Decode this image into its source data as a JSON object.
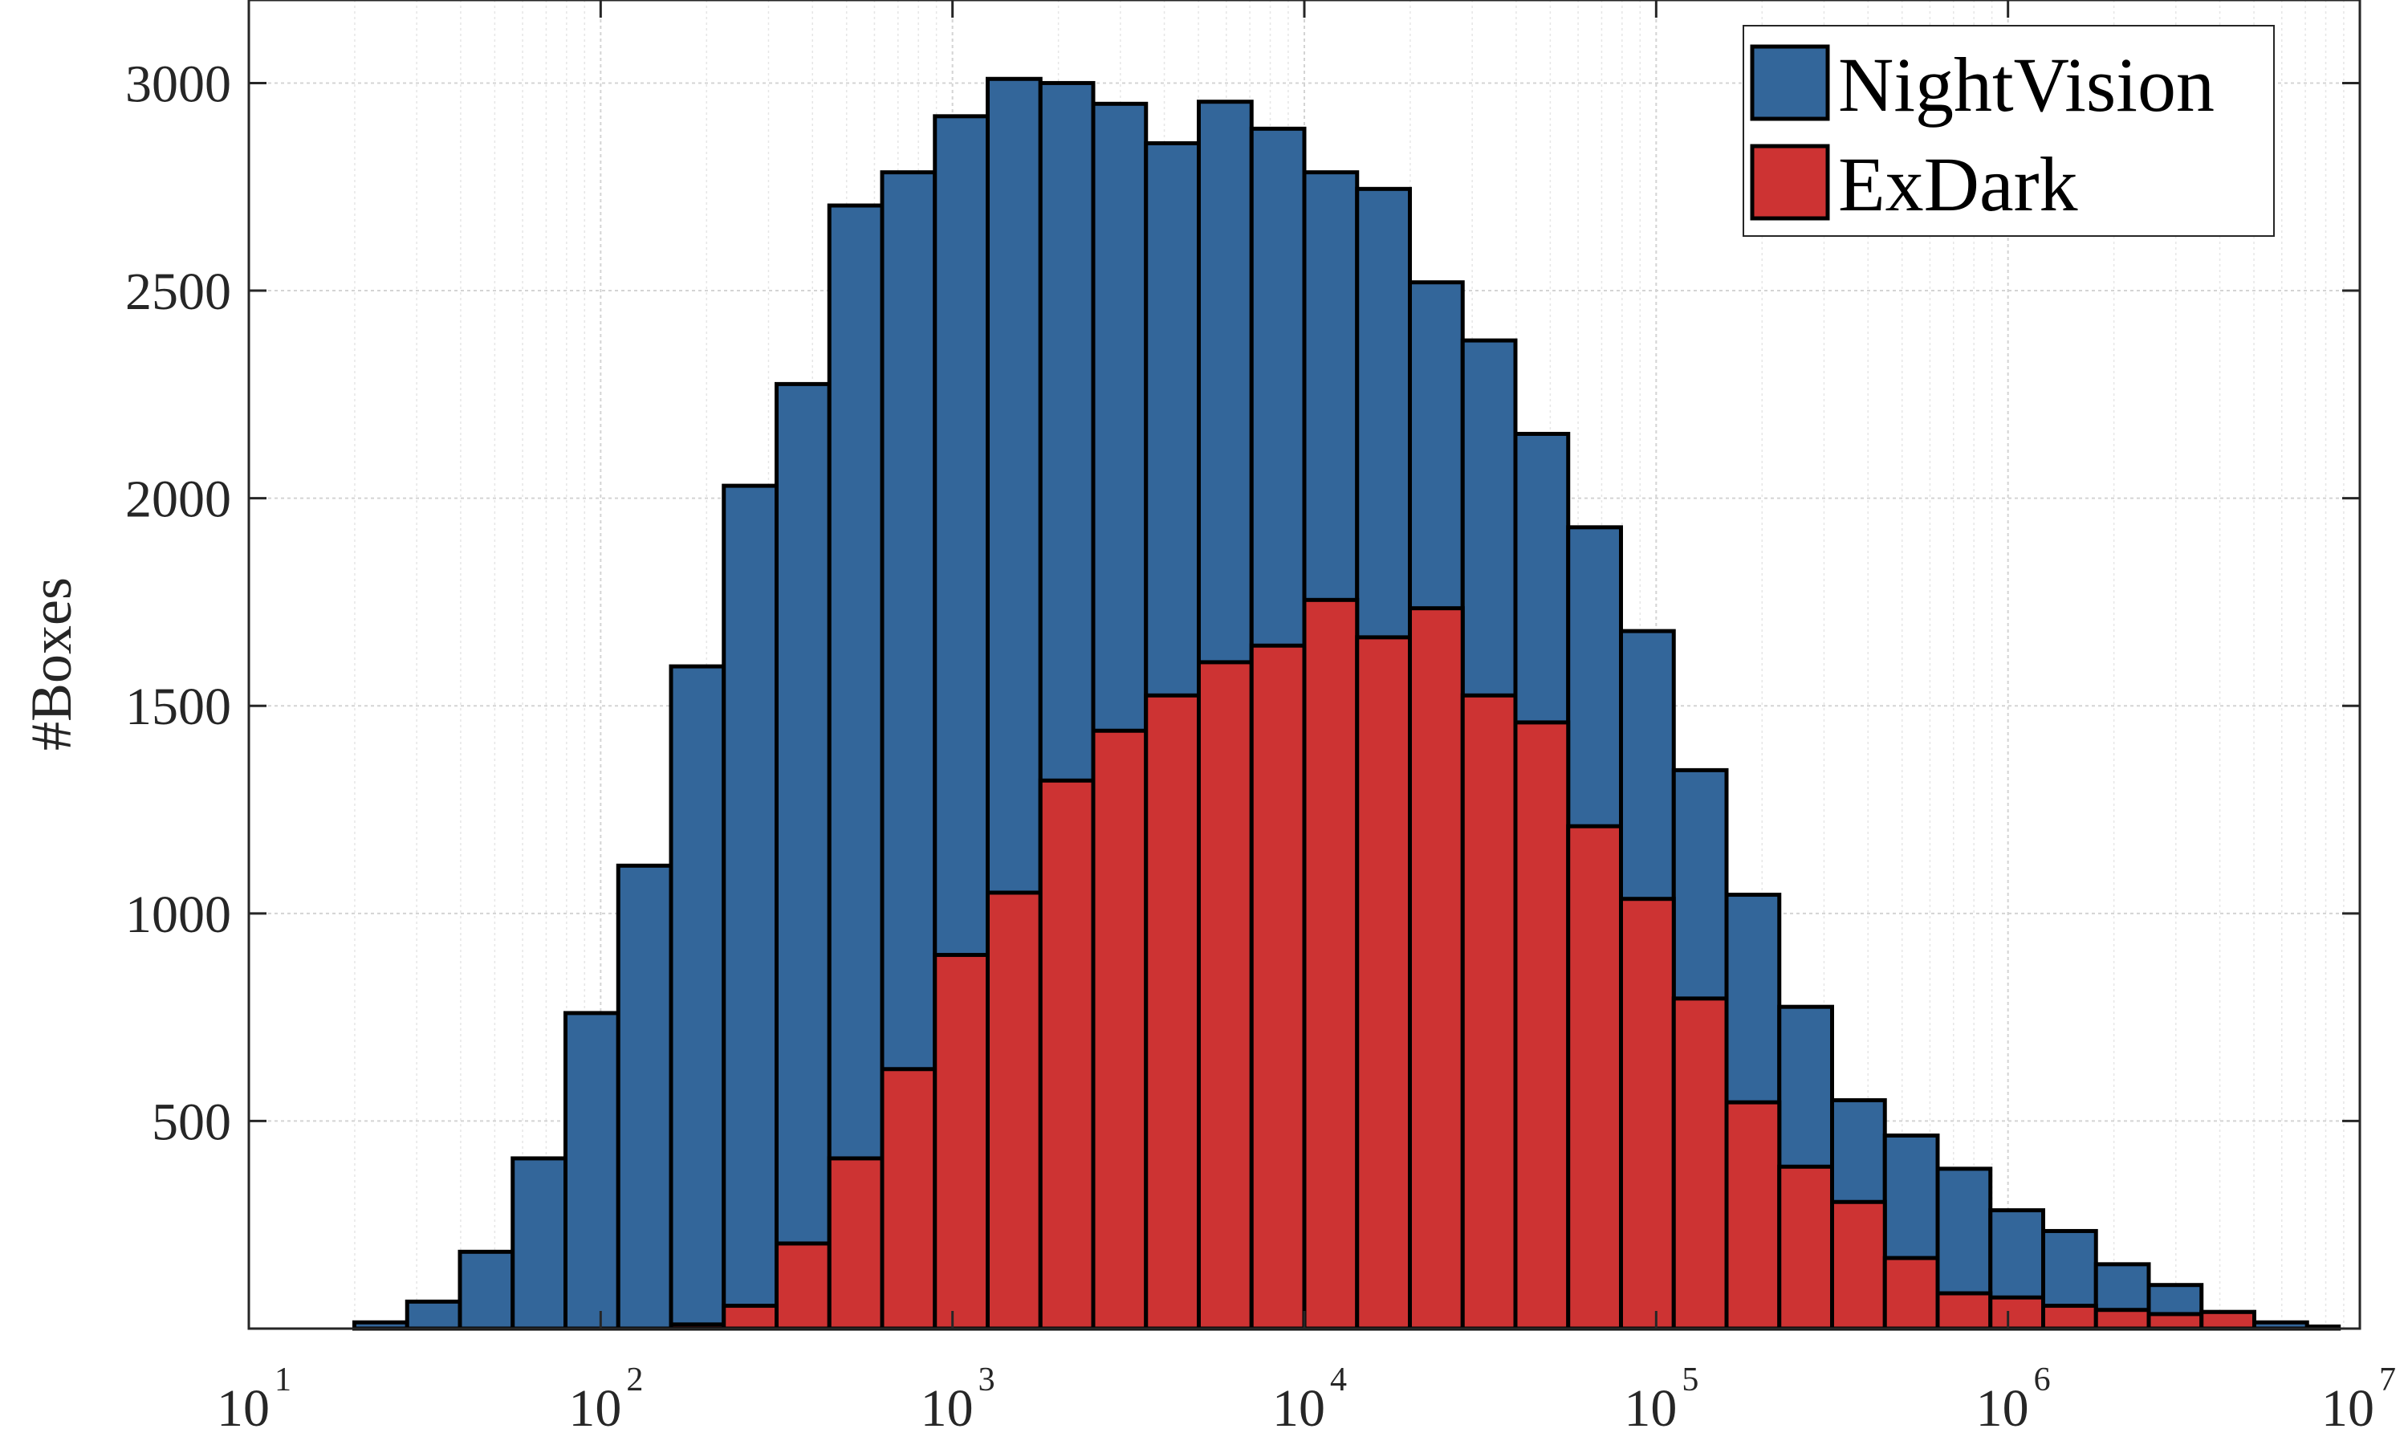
{
  "chart_data": {
    "type": "bar",
    "xlabel": "",
    "ylabel": "#Boxes",
    "x_scale": "log",
    "xlim": [
      10,
      10000000
    ],
    "ylim": [
      0,
      3200
    ],
    "y_ticks": [
      500,
      1000,
      1500,
      2000,
      2500,
      3000
    ],
    "x_ticks": [
      {
        "base": "10",
        "exp": "1"
      },
      {
        "base": "10",
        "exp": "2"
      },
      {
        "base": "10",
        "exp": "3"
      },
      {
        "base": "10",
        "exp": "4"
      },
      {
        "base": "10",
        "exp": "5"
      },
      {
        "base": "10",
        "exp": "6"
      },
      {
        "base": "10",
        "exp": "7"
      }
    ],
    "grid": true,
    "legend_position": "top-right",
    "bin_edges_log10": [
      1.3,
      1.45,
      1.6,
      1.75,
      1.9,
      2.05,
      2.2,
      2.35,
      2.5,
      2.65,
      2.8,
      2.95,
      3.1,
      3.25,
      3.4,
      3.55,
      3.7,
      3.85,
      4.0,
      4.15,
      4.3,
      4.45,
      4.6,
      4.75,
      4.9,
      5.05,
      5.2,
      5.35,
      5.5,
      5.65,
      5.8,
      5.95,
      6.1,
      6.25,
      6.4,
      6.55,
      6.7,
      6.85,
      6.94
    ],
    "series": [
      {
        "name": "NightVision",
        "color": "#33669a",
        "values": [
          15,
          65,
          185,
          410,
          760,
          1115,
          1595,
          2030,
          2275,
          2705,
          2785,
          2920,
          3010,
          3000,
          2950,
          2855,
          2955,
          2890,
          2785,
          2745,
          2520,
          2380,
          2155,
          1930,
          1680,
          1345,
          1045,
          775,
          550,
          465,
          385,
          285,
          235,
          155,
          105,
          40,
          15,
          5
        ]
      },
      {
        "name": "ExDark",
        "color": "#cd3333",
        "values": [
          0,
          0,
          0,
          0,
          0,
          0,
          10,
          55,
          205,
          410,
          625,
          900,
          1050,
          1320,
          1440,
          1525,
          1605,
          1645,
          1755,
          1665,
          1735,
          1525,
          1460,
          1210,
          1035,
          795,
          545,
          390,
          305,
          170,
          85,
          75,
          55,
          45,
          35,
          40,
          0,
          0
        ]
      }
    ]
  }
}
